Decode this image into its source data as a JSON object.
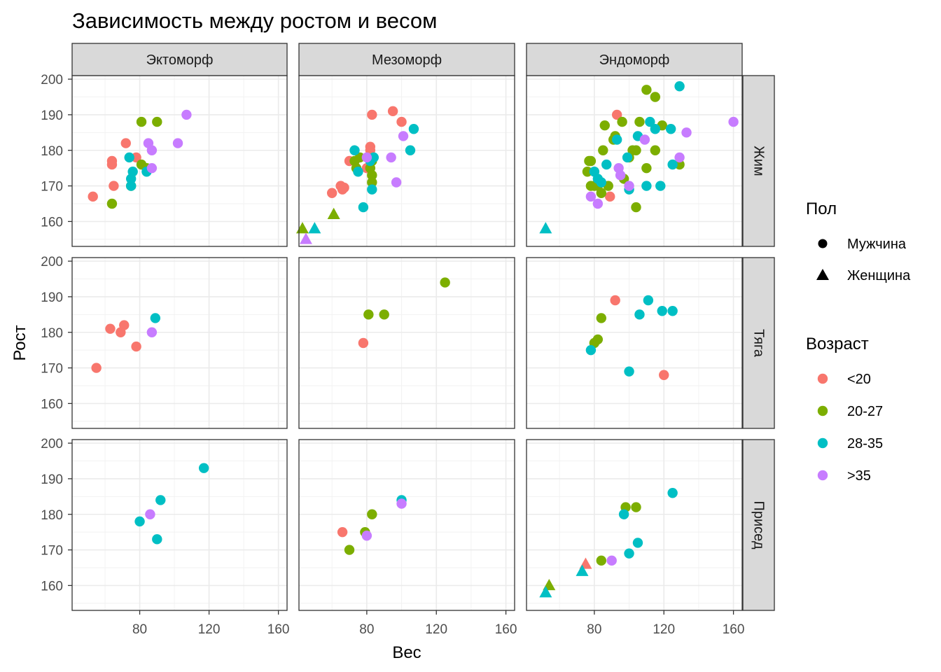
{
  "chart_data": {
    "type": "scatter",
    "title": "Зависимость между ростом и весом",
    "xlabel": "Вес",
    "ylabel": "Рост",
    "xlim": [
      41,
      165
    ],
    "ylim": [
      153,
      201
    ],
    "x_ticks": [
      80,
      120,
      160
    ],
    "y_ticks": [
      160,
      170,
      180,
      190,
      200
    ],
    "grid": true,
    "facet_cols": [
      "Эктоморф",
      "Мезоморф",
      "Эндоморф"
    ],
    "facet_rows": [
      "Жим",
      "Тяга",
      "Присед"
    ],
    "legend_placement": "right",
    "shape_legend": {
      "title": "Пол",
      "items": [
        {
          "label": "Мужчина",
          "shape": "circle"
        },
        {
          "label": "Женщина",
          "shape": "triangle"
        }
      ]
    },
    "color_legend": {
      "title": "Возраст",
      "items": [
        {
          "label": "<20",
          "color": "#F8766D"
        },
        {
          "label": "20-27",
          "color": "#7CAE00"
        },
        {
          "label": "28-35",
          "color": "#00BFC4"
        },
        {
          "label": ">35",
          "color": "#C77CFF"
        }
      ]
    },
    "panels": [
      {
        "col": 0,
        "row": 0,
        "points": [
          [
            53,
            167,
            0,
            "M"
          ],
          [
            64,
            177,
            0,
            "M"
          ],
          [
            64,
            176,
            0,
            "M"
          ],
          [
            65,
            170,
            0,
            "M"
          ],
          [
            72,
            182,
            0,
            "M"
          ],
          [
            78,
            178,
            0,
            "M"
          ],
          [
            64,
            165,
            1,
            "M"
          ],
          [
            75,
            170,
            1,
            "M"
          ],
          [
            81,
            188,
            1,
            "M"
          ],
          [
            81,
            176,
            1,
            "M"
          ],
          [
            84,
            175,
            1,
            "M"
          ],
          [
            90,
            188,
            1,
            "M"
          ],
          [
            74,
            178,
            2,
            "M"
          ],
          [
            75,
            172,
            2,
            "M"
          ],
          [
            75,
            170,
            2,
            "M"
          ],
          [
            76,
            174,
            2,
            "M"
          ],
          [
            84,
            174,
            2,
            "M"
          ],
          [
            85,
            182,
            3,
            "M"
          ],
          [
            87,
            180,
            3,
            "M"
          ],
          [
            87,
            175,
            3,
            "M"
          ],
          [
            102,
            182,
            3,
            "M"
          ],
          [
            107,
            190,
            3,
            "M"
          ]
        ]
      },
      {
        "col": 1,
        "row": 0,
        "points": [
          [
            60,
            168,
            0,
            "M"
          ],
          [
            65,
            170,
            0,
            "M"
          ],
          [
            66,
            169,
            0,
            "M"
          ],
          [
            67,
            169.5,
            0,
            "M"
          ],
          [
            70,
            177,
            0,
            "M"
          ],
          [
            80,
            175,
            0,
            "M"
          ],
          [
            82,
            180,
            0,
            "M"
          ],
          [
            82,
            181,
            0,
            "M"
          ],
          [
            83,
            190,
            0,
            "M"
          ],
          [
            95,
            191,
            0,
            "M"
          ],
          [
            100,
            188,
            0,
            "M"
          ],
          [
            73,
            177,
            1,
            "M"
          ],
          [
            74,
            175,
            1,
            "M"
          ],
          [
            76,
            178,
            1,
            "M"
          ],
          [
            82,
            175,
            1,
            "M"
          ],
          [
            83,
            177,
            1,
            "M"
          ],
          [
            83,
            171,
            1,
            "M"
          ],
          [
            83,
            173,
            1,
            "M"
          ],
          [
            43,
            158,
            1,
            "F"
          ],
          [
            61,
            162,
            1,
            "F"
          ],
          [
            50,
            158,
            2,
            "F"
          ],
          [
            73,
            180,
            2,
            "M"
          ],
          [
            75,
            174,
            2,
            "M"
          ],
          [
            78,
            164,
            2,
            "M"
          ],
          [
            82,
            177,
            2,
            "M"
          ],
          [
            83,
            169,
            2,
            "M"
          ],
          [
            84,
            178,
            2,
            "M"
          ],
          [
            105,
            180,
            2,
            "M"
          ],
          [
            107,
            186,
            2,
            "M"
          ],
          [
            45,
            155,
            3,
            "F"
          ],
          [
            80,
            178,
            3,
            "M"
          ],
          [
            94,
            178,
            3,
            "M"
          ],
          [
            97,
            171,
            3,
            "M"
          ],
          [
            101,
            184,
            3,
            "M"
          ]
        ]
      },
      {
        "col": 2,
        "row": 0,
        "points": [
          [
            89,
            167,
            0,
            "M"
          ],
          [
            93,
            190,
            0,
            "M"
          ],
          [
            76,
            174,
            1,
            "M"
          ],
          [
            77,
            177,
            1,
            "M"
          ],
          [
            78,
            177,
            1,
            "M"
          ],
          [
            78,
            170,
            1,
            "M"
          ],
          [
            80,
            170,
            1,
            "M"
          ],
          [
            82,
            170,
            1,
            "M"
          ],
          [
            84,
            168,
            1,
            "M"
          ],
          [
            85,
            180,
            1,
            "M"
          ],
          [
            86,
            187,
            1,
            "M"
          ],
          [
            88,
            170,
            1,
            "M"
          ],
          [
            91,
            183,
            1,
            "M"
          ],
          [
            92,
            184,
            1,
            "M"
          ],
          [
            96,
            188,
            1,
            "M"
          ],
          [
            97,
            172,
            1,
            "M"
          ],
          [
            100,
            178,
            1,
            "M"
          ],
          [
            102,
            180,
            1,
            "M"
          ],
          [
            104,
            164,
            1,
            "M"
          ],
          [
            104,
            180,
            1,
            "M"
          ],
          [
            106,
            188,
            1,
            "M"
          ],
          [
            110,
            175,
            1,
            "M"
          ],
          [
            110,
            197,
            1,
            "M"
          ],
          [
            115,
            195,
            1,
            "M"
          ],
          [
            115,
            180,
            1,
            "M"
          ],
          [
            119,
            187,
            1,
            "M"
          ],
          [
            129,
            176,
            1,
            "M"
          ],
          [
            52,
            158,
            2,
            "F"
          ],
          [
            80,
            174,
            2,
            "M"
          ],
          [
            82,
            172,
            2,
            "M"
          ],
          [
            84,
            171,
            2,
            "M"
          ],
          [
            87,
            176,
            2,
            "M"
          ],
          [
            93,
            183,
            2,
            "M"
          ],
          [
            99,
            178,
            2,
            "M"
          ],
          [
            100,
            169,
            2,
            "M"
          ],
          [
            105,
            184,
            2,
            "M"
          ],
          [
            110,
            170,
            2,
            "M"
          ],
          [
            112,
            188,
            2,
            "M"
          ],
          [
            115,
            186,
            2,
            "M"
          ],
          [
            118,
            170,
            2,
            "M"
          ],
          [
            124,
            186,
            2,
            "M"
          ],
          [
            125,
            176,
            2,
            "M"
          ],
          [
            129,
            198,
            2,
            "M"
          ],
          [
            78,
            167,
            3,
            "M"
          ],
          [
            82,
            165,
            3,
            "M"
          ],
          [
            94,
            175,
            3,
            "M"
          ],
          [
            95,
            173,
            3,
            "M"
          ],
          [
            100,
            170,
            3,
            "M"
          ],
          [
            109,
            183,
            3,
            "M"
          ],
          [
            129,
            178,
            3,
            "M"
          ],
          [
            133,
            185,
            3,
            "M"
          ],
          [
            160,
            188,
            3,
            "M"
          ]
        ]
      },
      {
        "col": 0,
        "row": 1,
        "points": [
          [
            55,
            170,
            0,
            "M"
          ],
          [
            63,
            181,
            0,
            "M"
          ],
          [
            69,
            180,
            0,
            "M"
          ],
          [
            71,
            182,
            0,
            "M"
          ],
          [
            78,
            176,
            0,
            "M"
          ],
          [
            89,
            184,
            2,
            "M"
          ],
          [
            87,
            180,
            3,
            "M"
          ]
        ]
      },
      {
        "col": 1,
        "row": 1,
        "points": [
          [
            78,
            177,
            0,
            "M"
          ],
          [
            81,
            185,
            1,
            "M"
          ],
          [
            90,
            185,
            1,
            "M"
          ],
          [
            125,
            194,
            1,
            "M"
          ]
        ]
      },
      {
        "col": 2,
        "row": 1,
        "points": [
          [
            92,
            189,
            0,
            "M"
          ],
          [
            120,
            168,
            0,
            "M"
          ],
          [
            80,
            177,
            1,
            "M"
          ],
          [
            82,
            178,
            1,
            "M"
          ],
          [
            84,
            184,
            1,
            "M"
          ],
          [
            78,
            175,
            2,
            "M"
          ],
          [
            100,
            169,
            2,
            "M"
          ],
          [
            106,
            185,
            2,
            "M"
          ],
          [
            111,
            189,
            2,
            "M"
          ],
          [
            119,
            186,
            2,
            "M"
          ],
          [
            125,
            186,
            2,
            "M"
          ]
        ]
      },
      {
        "col": 0,
        "row": 2,
        "points": [
          [
            80,
            178,
            2,
            "M"
          ],
          [
            90,
            173,
            2,
            "M"
          ],
          [
            92,
            184,
            2,
            "M"
          ],
          [
            117,
            193,
            2,
            "M"
          ],
          [
            86,
            180,
            3,
            "M"
          ]
        ]
      },
      {
        "col": 1,
        "row": 2,
        "points": [
          [
            66,
            175,
            0,
            "M"
          ],
          [
            70,
            170,
            1,
            "M"
          ],
          [
            79,
            175,
            1,
            "M"
          ],
          [
            83,
            180,
            1,
            "M"
          ],
          [
            100,
            184,
            2,
            "M"
          ],
          [
            80,
            174,
            3,
            "M"
          ],
          [
            100,
            183,
            3,
            "M"
          ]
        ]
      },
      {
        "col": 2,
        "row": 2,
        "points": [
          [
            75,
            166,
            0,
            "F"
          ],
          [
            54,
            160,
            1,
            "F"
          ],
          [
            84,
            167,
            1,
            "M"
          ],
          [
            98,
            182,
            1,
            "M"
          ],
          [
            104,
            182,
            1,
            "M"
          ],
          [
            52,
            158,
            2,
            "F"
          ],
          [
            73,
            164,
            2,
            "F"
          ],
          [
            97,
            180,
            2,
            "M"
          ],
          [
            100,
            169,
            2,
            "M"
          ],
          [
            105,
            172,
            2,
            "M"
          ],
          [
            125,
            186,
            2,
            "M"
          ],
          [
            90,
            167,
            3,
            "M"
          ]
        ]
      }
    ]
  }
}
